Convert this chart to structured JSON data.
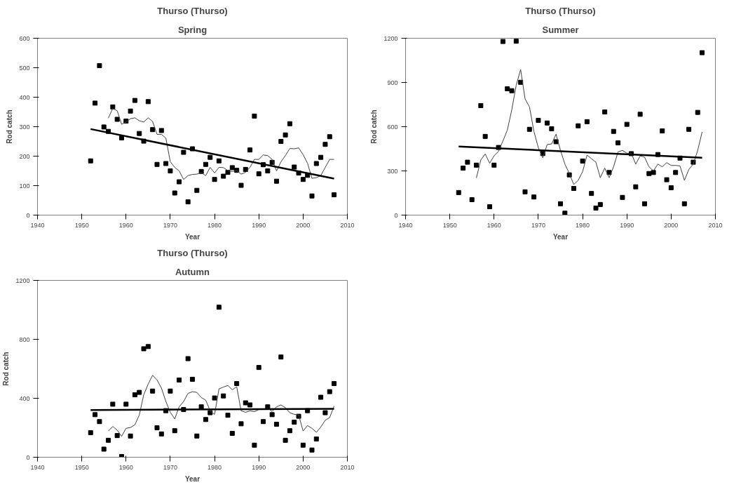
{
  "chart_data": [
    {
      "type": "scatter",
      "title": "Thurso (Thurso)",
      "subtitle": "Spring",
      "xlabel": "Year",
      "ylabel": "Rod catch",
      "xlim": [
        1940,
        2010
      ],
      "xticks": [
        1940,
        1950,
        1960,
        1970,
        1980,
        1990,
        2000,
        2010
      ],
      "ylim": [
        0,
        600
      ],
      "yticks": [
        0,
        100,
        200,
        300,
        400,
        500,
        600
      ],
      "grid": false,
      "series": [
        {
          "type": "scatter",
          "marker": "square",
          "color": "#000000",
          "x": [
            1952,
            1953,
            1954,
            1955,
            1956,
            1957,
            1958,
            1959,
            1960,
            1961,
            1962,
            1963,
            1964,
            1965,
            1966,
            1967,
            1968,
            1969,
            1970,
            1971,
            1972,
            1973,
            1974,
            1975,
            1976,
            1977,
            1978,
            1979,
            1980,
            1981,
            1982,
            1983,
            1984,
            1985,
            1986,
            1987,
            1988,
            1989,
            1990,
            1991,
            1992,
            1993,
            1994,
            1995,
            1996,
            1997,
            1998,
            1999,
            2000,
            2001,
            2002,
            2003,
            2004,
            2005,
            2006,
            2007
          ],
          "values": [
            184,
            380,
            507,
            299,
            284,
            367,
            325,
            262,
            319,
            353,
            389,
            277,
            251,
            385,
            290,
            172,
            287,
            175,
            150,
            75,
            113,
            213,
            45,
            225,
            84,
            148,
            172,
            196,
            121,
            184,
            132,
            145,
            161,
            152,
            101,
            155,
            221,
            336,
            140,
            171,
            150,
            179,
            115,
            250,
            272,
            310,
            163,
            143,
            121,
            135,
            65,
            175,
            196,
            240,
            266,
            69
          ]
        },
        {
          "type": "line",
          "marker": "none",
          "line_style": "solid",
          "color": "#404040",
          "x": [
            1956,
            1957,
            1958,
            1959,
            1960,
            1961,
            1962,
            1963,
            1964,
            1965,
            1966,
            1967,
            1968,
            1969,
            1970,
            1971,
            1972,
            1973,
            1974,
            1975,
            1976,
            1977,
            1978,
            1979,
            1980,
            1981,
            1982,
            1983,
            1984,
            1985,
            1986,
            1987,
            1988,
            1989,
            1990,
            1991,
            1992,
            1993,
            1994,
            1995,
            1996,
            1997,
            1998,
            1999,
            2000,
            2001,
            2002,
            2003,
            2004,
            2005,
            2006,
            2007
          ],
          "values": [
            329,
            362,
            354,
            308,
            316,
            327,
            330,
            320,
            316,
            330,
            318,
            274,
            274,
            261,
            181,
            162,
            150,
            121,
            134,
            138,
            139,
            144,
            134,
            162,
            143,
            162,
            161,
            151,
            148,
            151,
            139,
            145,
            162,
            189,
            189,
            204,
            202,
            189,
            150,
            181,
            202,
            226,
            225,
            228,
            205,
            176,
            125,
            127,
            134,
            162,
            189,
            189
          ]
        },
        {
          "type": "line",
          "marker": "none",
          "line_style": "solid",
          "color": "#000000",
          "x": [
            1952,
            2007
          ],
          "values": [
            292,
            124
          ]
        }
      ]
    },
    {
      "type": "scatter",
      "title": "Thurso (Thurso)",
      "subtitle": "Summer",
      "xlabel": "Year",
      "ylabel": "Rod catch",
      "xlim": [
        1940,
        2010
      ],
      "xticks": [
        1940,
        1950,
        1960,
        1970,
        1980,
        1990,
        2000,
        2010
      ],
      "ylim": [
        0,
        1200
      ],
      "yticks": [
        0,
        300,
        600,
        900,
        1200
      ],
      "grid": false,
      "series": [
        {
          "type": "scatter",
          "marker": "square",
          "color": "#000000",
          "x": [
            1952,
            1953,
            1954,
            1955,
            1956,
            1957,
            1958,
            1959,
            1960,
            1961,
            1962,
            1963,
            1964,
            1965,
            1966,
            1967,
            1968,
            1969,
            1970,
            1971,
            1972,
            1973,
            1974,
            1975,
            1976,
            1977,
            1978,
            1979,
            1980,
            1981,
            1982,
            1983,
            1984,
            1985,
            1986,
            1987,
            1988,
            1989,
            1990,
            1991,
            1992,
            1993,
            1994,
            1995,
            1996,
            1997,
            1998,
            1999,
            2000,
            2001,
            2002,
            2003,
            2004,
            2005,
            2006,
            2007
          ],
          "values": [
            153,
            319,
            359,
            105,
            339,
            743,
            534,
            57,
            339,
            459,
            1178,
            857,
            844,
            1180,
            901,
            158,
            582,
            123,
            643,
            418,
            625,
            586,
            498,
            77,
            13,
            273,
            181,
            606,
            367,
            634,
            147,
            48,
            72,
            700,
            289,
            568,
            490,
            120,
            616,
            417,
            192,
            684,
            77,
            282,
            289,
            411,
            571,
            240,
            186,
            289,
            387,
            77,
            582,
            359,
            697,
            1102
          ]
        },
        {
          "type": "line",
          "marker": "none",
          "line_style": "solid",
          "color": "#404040",
          "x": [
            1956,
            1957,
            1958,
            1959,
            1960,
            1961,
            1962,
            1963,
            1964,
            1965,
            1966,
            1967,
            1968,
            1969,
            1970,
            1971,
            1972,
            1973,
            1974,
            1975,
            1976,
            1977,
            1978,
            1979,
            1980,
            1981,
            1982,
            1983,
            1984,
            1985,
            1986,
            1987,
            1988,
            1989,
            1990,
            1991,
            1992,
            1993,
            1994,
            1995,
            1996,
            1997,
            1998,
            1999,
            2000,
            2001,
            2002,
            2003,
            2004,
            2005,
            2006,
            2007
          ],
          "values": [
            252,
            374,
            415,
            352,
            402,
            433,
            503,
            577,
            715,
            881,
            988,
            789,
            734,
            568,
            457,
            389,
            479,
            483,
            549,
            439,
            346,
            282,
            208,
            236,
            295,
            407,
            383,
            359,
            254,
            319,
            254,
            328,
            429,
            439,
            420,
            420,
            346,
            402,
            393,
            328,
            300,
            346,
            328,
            356,
            337,
            337,
            334,
            236,
            310,
            346,
            439,
            564
          ]
        },
        {
          "type": "line",
          "marker": "none",
          "line_style": "solid",
          "color": "#000000",
          "x": [
            1952,
            2007
          ],
          "values": [
            466,
            389
          ]
        }
      ]
    },
    {
      "type": "scatter",
      "title": "Thurso (Thurso)",
      "subtitle": "Autumn",
      "xlabel": "Year",
      "ylabel": "Rod catch",
      "xlim": [
        1940,
        2010
      ],
      "xticks": [
        1940,
        1950,
        1960,
        1970,
        1980,
        1990,
        2000,
        2010
      ],
      "ylim": [
        0,
        1200
      ],
      "yticks": [
        0,
        400,
        800,
        1200
      ],
      "grid": false,
      "series": [
        {
          "type": "scatter",
          "marker": "square",
          "color": "#000000",
          "x": [
            1952,
            1953,
            1954,
            1955,
            1956,
            1957,
            1958,
            1959,
            1960,
            1961,
            1962,
            1963,
            1964,
            1965,
            1966,
            1967,
            1968,
            1969,
            1970,
            1971,
            1972,
            1973,
            1974,
            1975,
            1976,
            1977,
            1978,
            1979,
            1980,
            1981,
            1982,
            1983,
            1984,
            1985,
            1986,
            1987,
            1988,
            1989,
            1990,
            1991,
            1992,
            1993,
            1994,
            1995,
            1996,
            1997,
            1998,
            1999,
            2000,
            2001,
            2002,
            2003,
            2004,
            2005,
            2006,
            2007
          ],
          "values": [
            167,
            289,
            242,
            55,
            115,
            360,
            147,
            5,
            360,
            144,
            424,
            440,
            736,
            751,
            449,
            200,
            158,
            316,
            449,
            180,
            524,
            324,
            669,
            529,
            144,
            342,
            256,
            302,
            402,
            1018,
            416,
            285,
            162,
            500,
            227,
            369,
            355,
            82,
            609,
            242,
            342,
            289,
            224,
            680,
            115,
            180,
            238,
            278,
            82,
            316,
            49,
            124,
            407,
            302,
            445,
            500
          ]
        },
        {
          "type": "line",
          "marker": "none",
          "line_style": "solid",
          "color": "#404040",
          "x": [
            1956,
            1957,
            1958,
            1959,
            1960,
            1961,
            1962,
            1963,
            1964,
            1965,
            1966,
            1967,
            1968,
            1969,
            1970,
            1971,
            1972,
            1973,
            1974,
            1975,
            1976,
            1977,
            1978,
            1979,
            1980,
            1981,
            1982,
            1983,
            1984,
            1985,
            1986,
            1987,
            1988,
            1989,
            1990,
            1991,
            1992,
            1993,
            1994,
            1995,
            1996,
            1997,
            1998,
            1999,
            2000,
            2001,
            2002,
            2003,
            2004,
            2005,
            2006,
            2007
          ],
          "values": [
            178,
            209,
            184,
            142,
            196,
            202,
            220,
            287,
            424,
            496,
            556,
            524,
            469,
            378,
            305,
            260,
            342,
            378,
            433,
            445,
            440,
            405,
            387,
            315,
            291,
            464,
            476,
            487,
            458,
            478,
            315,
            305,
            315,
            309,
            324,
            324,
            333,
            311,
            342,
            355,
            336,
            302,
            291,
            287,
            178,
            215,
            196,
            169,
            205,
            251,
            269,
            347
          ]
        },
        {
          "type": "line",
          "marker": "none",
          "line_style": "solid",
          "color": "#000000",
          "x": [
            1952,
            2007
          ],
          "values": [
            320,
            329
          ]
        }
      ]
    }
  ]
}
